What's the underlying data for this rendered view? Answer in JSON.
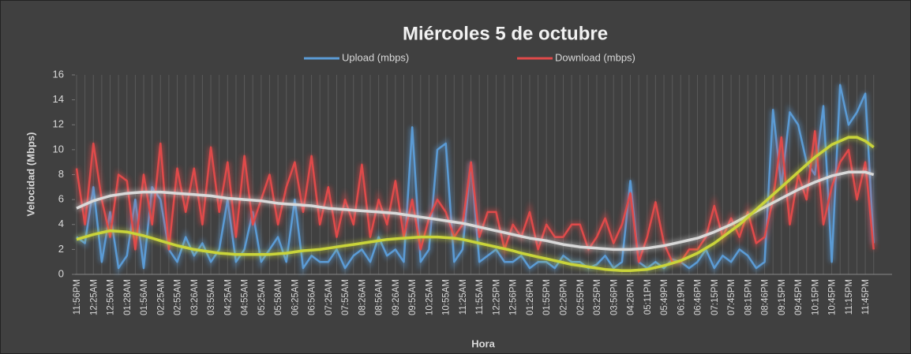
{
  "chart_data": {
    "type": "line",
    "title": "Miércoles 5 de octubre",
    "x_label": "Hora",
    "y_label": "Velocidad (Mbps)",
    "ylim": [
      0,
      16
    ],
    "yticks": [
      0,
      2,
      4,
      6,
      8,
      10,
      12,
      14,
      16
    ],
    "grid": "vertical",
    "legend": "top",
    "categories": [
      "11:56PM",
      null,
      "12:25AM",
      null,
      "12:56AM",
      null,
      "01:28AM",
      null,
      "01:56AM",
      null,
      "02:25AM",
      null,
      "02:55AM",
      null,
      "03:26AM",
      null,
      "03:55AM",
      null,
      "04:25AM",
      null,
      "04:55AM",
      null,
      "05:25AM",
      null,
      "05:58AM",
      null,
      "06:25AM",
      null,
      "06:56AM",
      null,
      "07:25AM",
      null,
      "07:55AM",
      null,
      "08:26AM",
      null,
      "08:56AM",
      null,
      "09:26AM",
      null,
      "09:55AM",
      null,
      "10:25AM",
      null,
      "10:55AM",
      null,
      "11:25AM",
      null,
      "11:55AM",
      null,
      "12:25PM",
      null,
      "12:56PM",
      null,
      "01:26PM",
      null,
      "01:55PM",
      null,
      "02:26PM",
      null,
      "02:55PM",
      null,
      "03:25PM",
      null,
      "03:56PM",
      null,
      "04:26PM",
      null,
      "05:11PM",
      null,
      "05:49PM",
      null,
      "06:19PM",
      null,
      "06:46PM",
      null,
      "07:15PM",
      null,
      "07:45PM",
      null,
      "08:15PM",
      null,
      "08:46PM",
      null,
      "09:15PM",
      null,
      "09:45PM",
      null,
      "10:15PM",
      null,
      "10:45PM",
      null,
      "11:15PM",
      null,
      "11:45PM",
      null
    ],
    "series": [
      {
        "name": "Upload (mbps)",
        "color": "#5b9bd5",
        "values": [
          3,
          2.5,
          7,
          1,
          5,
          0.5,
          1.5,
          6,
          0.5,
          7,
          6,
          2,
          1,
          3,
          1.5,
          2.5,
          1,
          2,
          6,
          1,
          2,
          5,
          1,
          2,
          3,
          1,
          6,
          0.5,
          1.5,
          1,
          1,
          2,
          0.5,
          1.5,
          2,
          1,
          3,
          1.5,
          2,
          1,
          11.8,
          1,
          2,
          10,
          10.5,
          1,
          2,
          9,
          1,
          1.5,
          2,
          1,
          1,
          1.5,
          0.5,
          1,
          1,
          0.5,
          1.5,
          1,
          1,
          0.5,
          0.8,
          1.5,
          0.5,
          1,
          7.5,
          1,
          0.5,
          1,
          0.5,
          1.2,
          1,
          0.5,
          1,
          2,
          0.5,
          1.5,
          1,
          2,
          1.5,
          0.5,
          1,
          13.2,
          7,
          13,
          12,
          9,
          8,
          13.5,
          1,
          15.2,
          12,
          13,
          14.5,
          2.5
        ]
      },
      {
        "name": "Download (mbps)",
        "color": "#e04a4a",
        "values": [
          8.5,
          4,
          10.5,
          6,
          3,
          8,
          7.5,
          2,
          8,
          4,
          10.5,
          2,
          8.5,
          5,
          8.5,
          4,
          10.2,
          5,
          9,
          3,
          9.5,
          4,
          6,
          8,
          4,
          7,
          9,
          5,
          9.5,
          4,
          7,
          3,
          6,
          4,
          8.8,
          3,
          6,
          4,
          7.5,
          3,
          6,
          2,
          4.5,
          6,
          5,
          3,
          4,
          9,
          3,
          5,
          5,
          2,
          4,
          3,
          5,
          2,
          4,
          3,
          3,
          4,
          4,
          2,
          3,
          4.5,
          2.5,
          4,
          6.5,
          1,
          3,
          5.8,
          2.5,
          1,
          1,
          2,
          2,
          3,
          5.5,
          3,
          4.5,
          3,
          5,
          2.5,
          3,
          6,
          11,
          4,
          8,
          6,
          11.5,
          4,
          7,
          9,
          10,
          6,
          9,
          2
        ]
      }
    ],
    "trendlines": [
      {
        "color": "#d9d9d9",
        "values": [
          5.3,
          5.6,
          5.9,
          6.1,
          6.3,
          6.4,
          6.5,
          6.55,
          6.6,
          6.6,
          6.6,
          6.55,
          6.5,
          6.45,
          6.4,
          6.35,
          6.3,
          6.2,
          6.1,
          6.05,
          6.0,
          5.95,
          5.9,
          5.8,
          5.7,
          5.65,
          5.6,
          5.55,
          5.5,
          5.4,
          5.3,
          5.25,
          5.2,
          5.15,
          5.1,
          5.05,
          5.0,
          4.95,
          4.9,
          4.8,
          4.7,
          4.6,
          4.5,
          4.4,
          4.3,
          4.2,
          4.1,
          3.95,
          3.8,
          3.65,
          3.5,
          3.35,
          3.2,
          3.05,
          2.9,
          2.8,
          2.7,
          2.55,
          2.4,
          2.3,
          2.2,
          2.15,
          2.1,
          2.05,
          2.0,
          2.0,
          2.0,
          2.05,
          2.1,
          2.2,
          2.3,
          2.45,
          2.6,
          2.75,
          2.9,
          3.15,
          3.4,
          3.7,
          4.0,
          4.35,
          4.7,
          5.05,
          5.4,
          5.75,
          6.1,
          6.45,
          6.8,
          7.1,
          7.4,
          7.65,
          7.9,
          8.05,
          8.2,
          8.2,
          8.2,
          8.0
        ]
      },
      {
        "color": "#c9d43a",
        "values": [
          2.8,
          3.0,
          3.2,
          3.35,
          3.5,
          3.45,
          3.4,
          3.25,
          3.1,
          2.9,
          2.7,
          2.5,
          2.3,
          2.15,
          2.0,
          1.9,
          1.8,
          1.7,
          1.65,
          1.6,
          1.6,
          1.6,
          1.6,
          1.6,
          1.65,
          1.7,
          1.8,
          1.9,
          1.95,
          2.0,
          2.1,
          2.2,
          2.3,
          2.4,
          2.5,
          2.6,
          2.7,
          2.8,
          2.85,
          2.9,
          2.95,
          3.0,
          3.0,
          3.0,
          2.95,
          2.9,
          2.8,
          2.65,
          2.5,
          2.35,
          2.2,
          2.05,
          1.9,
          1.7,
          1.55,
          1.4,
          1.25,
          1.1,
          0.95,
          0.8,
          0.7,
          0.6,
          0.5,
          0.4,
          0.35,
          0.3,
          0.3,
          0.35,
          0.4,
          0.55,
          0.7,
          0.9,
          1.1,
          1.4,
          1.7,
          2.1,
          2.5,
          3.0,
          3.5,
          4.0,
          4.6,
          5.2,
          5.8,
          6.4,
          7.0,
          7.6,
          8.2,
          8.8,
          9.4,
          9.9,
          10.4,
          10.7,
          11.0,
          11.0,
          10.7,
          10.2
        ]
      }
    ]
  }
}
